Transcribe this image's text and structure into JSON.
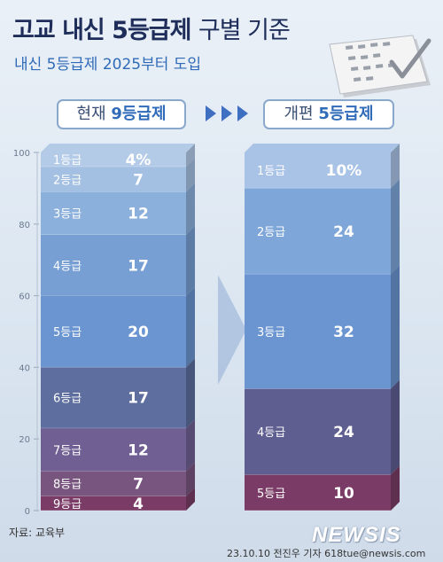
{
  "header": {
    "title_bold": "고교 내신 5등급제",
    "title_light": "구별 기준",
    "subtitle": "내신 5등급제 2025부터 도입"
  },
  "labels": {
    "left_pill_prefix": "현재",
    "left_pill_highlight": "9등급제",
    "right_pill_prefix": "개편",
    "right_pill_highlight": "5등급제"
  },
  "footer": {
    "source": "자료: 교육부",
    "credit": "23.10.10 전진우 기자 618tue@newsis.com",
    "logo": "NEWSIS"
  },
  "colors": {
    "current": [
      "#b4cbe8",
      "#a3bfe2",
      "#8cb0dc",
      "#779fd3",
      "#6b95d0",
      "#5e6e9f",
      "#6f5f93",
      "#78557f",
      "#7a3c66"
    ],
    "reformed": [
      "#a9c3e6",
      "#7ea6d8",
      "#6a95d0",
      "#5f5e91",
      "#7a3c66"
    ]
  },
  "chart_data": [
    {
      "type": "bar",
      "stacked": true,
      "name": "현재 9등급제",
      "categories": [
        "1등급",
        "2등급",
        "3등급",
        "4등급",
        "5등급",
        "6등급",
        "7등급",
        "8등급",
        "9등급"
      ],
      "values": [
        4,
        7,
        12,
        17,
        20,
        17,
        12,
        7,
        4
      ],
      "value_labels": [
        "4%",
        "7",
        "12",
        "17",
        "20",
        "17",
        "12",
        "7",
        "4"
      ],
      "yticks": [
        "0",
        "20",
        "40",
        "60",
        "80",
        "100"
      ],
      "ylim": [
        0,
        100
      ]
    },
    {
      "type": "bar",
      "stacked": true,
      "name": "개편 5등급제",
      "categories": [
        "1등급",
        "2등급",
        "3등급",
        "4등급",
        "5등급"
      ],
      "values": [
        10,
        24,
        32,
        24,
        10
      ],
      "value_labels": [
        "10%",
        "24",
        "32",
        "24",
        "10"
      ],
      "ylim": [
        0,
        100
      ]
    }
  ]
}
